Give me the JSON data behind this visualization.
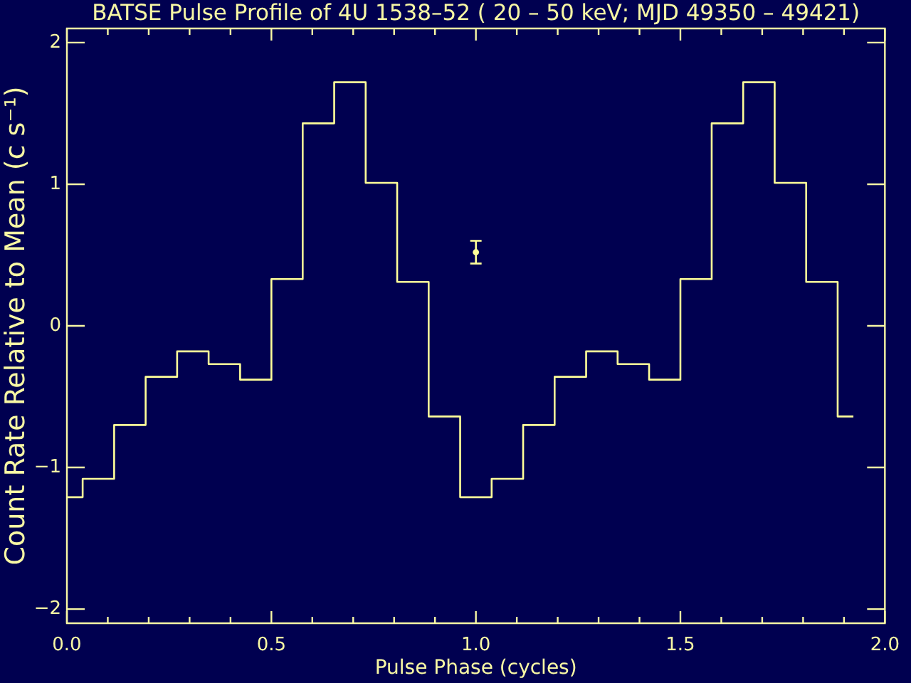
{
  "chart_data": {
    "type": "step",
    "title": "BATSE Pulse Profile of 4U 1538–52 ( 20 – 50 keV; MJD 49350 – 49421)",
    "xlabel": "Pulse Phase (cycles)",
    "ylabel": "Count Rate Relative to Mean (c s⁻¹)",
    "series": [
      {
        "color": "#ffff99",
        "x": [
          0,
          0.077,
          0.154,
          0.231,
          0.308,
          0.385,
          0.462,
          0.538,
          0.615,
          0.692,
          0.769,
          0.846,
          0.923,
          1.0,
          1.077,
          1.154,
          1.231,
          1.308,
          1.385,
          1.462,
          1.538,
          1.615,
          1.692,
          1.769,
          1.846,
          1.923
        ],
        "values": [
          -1.21,
          -1.08,
          -0.7,
          -0.36,
          -0.18,
          -0.27,
          -0.38,
          0.33,
          1.43,
          1.72,
          1.01,
          0.31,
          -0.64,
          -1.21,
          -1.08,
          -0.7,
          -0.36,
          -0.18,
          -0.27,
          -0.38,
          0.33,
          1.43,
          1.72,
          1.01,
          0.31,
          -0.64
        ]
      },
      {
        "type": "scatter",
        "color": "#ffff99",
        "marker": "circle",
        "x": [
          1.0
        ],
        "values": [
          0.52
        ],
        "errors": [
          0.08
        ]
      }
    ],
    "xlim": [
      0,
      2
    ],
    "ylim": [
      -2.1,
      2.1
    ],
    "xticks": [
      {
        "value": 0,
        "label": "0.0"
      },
      {
        "value": 0.1,
        "label": null
      },
      {
        "value": 0.2,
        "label": null
      },
      {
        "value": 0.3,
        "label": null
      },
      {
        "value": 0.4,
        "label": null
      },
      {
        "value": 0.5,
        "label": "0.5"
      },
      {
        "value": 0.6,
        "label": null
      },
      {
        "value": 0.7,
        "label": null
      },
      {
        "value": 0.8,
        "label": null
      },
      {
        "value": 0.9,
        "label": null
      },
      {
        "value": 1,
        "label": "1.0"
      },
      {
        "value": 1.1,
        "label": null
      },
      {
        "value": 1.2,
        "label": null
      },
      {
        "value": 1.3,
        "label": null
      },
      {
        "value": 1.4,
        "label": null
      },
      {
        "value": 1.5,
        "label": "1.5"
      },
      {
        "value": 1.6,
        "label": null
      },
      {
        "value": 1.7,
        "label": null
      },
      {
        "value": 1.8,
        "label": null
      },
      {
        "value": 1.9,
        "label": null
      },
      {
        "value": 2,
        "label": "2.0"
      }
    ],
    "yticks": [
      -2,
      -1,
      0,
      1,
      2
    ],
    "marker": "none"
  }
}
